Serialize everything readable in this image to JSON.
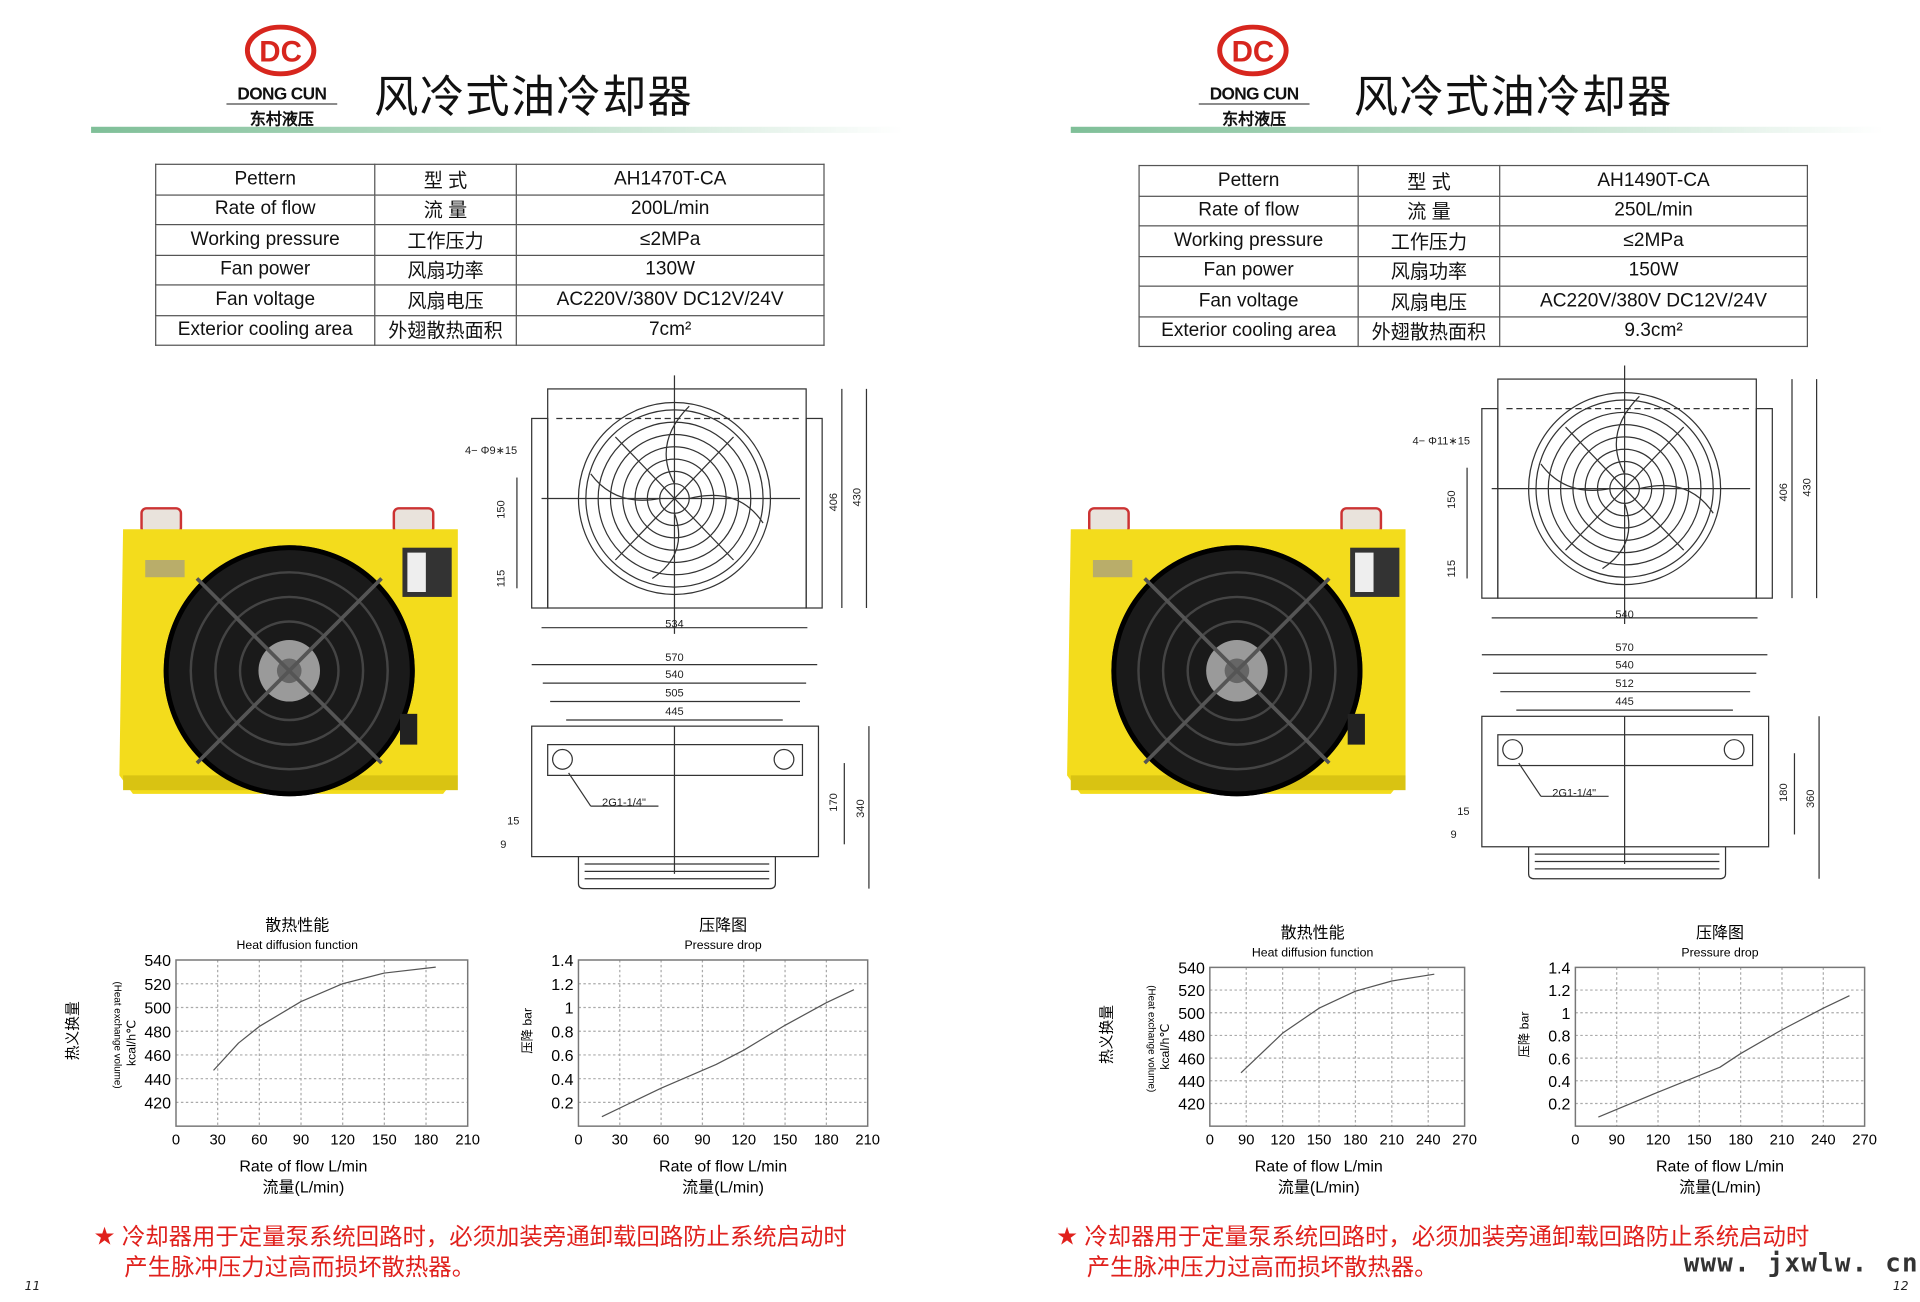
{
  "brand": {
    "logo_letters": "DC",
    "name_en": "DONG CUN",
    "name_cn": "东村液压",
    "color": "#d7261e"
  },
  "pages": [
    {
      "title": "风冷式油冷却器",
      "page_number": "11",
      "specs": [
        {
          "en": "Pettern",
          "cn": "型  式",
          "value": "AH1470T-CA"
        },
        {
          "en": "Rate of flow",
          "cn": "流  量",
          "value": "200L/min"
        },
        {
          "en": "Working pressure",
          "cn": "工作压力",
          "value": "≤2MPa"
        },
        {
          "en": "Fan power",
          "cn": "风扇功率",
          "value": "130W"
        },
        {
          "en": "Fan voltage",
          "cn": "风扇电压",
          "value": "AC220V/380V  DC12V/24V"
        },
        {
          "en": "Exterior cooling area",
          "cn": "外翅散热面积",
          "value": "7cm²"
        }
      ],
      "drawing": {
        "holes": "4− Φ9∗15",
        "h150": "150",
        "h115": "115",
        "h406": "406",
        "h430": "430",
        "w_top": "534",
        "w570": "570",
        "w540": "540",
        "w_mid": "505",
        "w445": "445",
        "port": "2G1-1/4\"",
        "d15": "15",
        "d9": "9",
        "h_inner": "170",
        "h_outer": "340"
      },
      "note_line1": "冷却器用于定量泵系统回路时，必须加装旁通卸载回路防止系统启动时",
      "note_line2": "产生脉冲压力过高而损坏散热器。"
    },
    {
      "title": "风冷式油冷却器",
      "page_number": "12",
      "specs": [
        {
          "en": "Pettern",
          "cn": "型  式",
          "value": "AH1490T-CA"
        },
        {
          "en": "Rate of flow",
          "cn": "流  量",
          "value": "250L/min"
        },
        {
          "en": "Working pressure",
          "cn": "工作压力",
          "value": "≤2MPa"
        },
        {
          "en": "Fan power",
          "cn": "风扇功率",
          "value": "150W"
        },
        {
          "en": "Fan voltage",
          "cn": "风扇电压",
          "value": "AC220V/380V  DC12V/24V"
        },
        {
          "en": "Exterior cooling area",
          "cn": "外翅散热面积",
          "value": "9.3cm²"
        }
      ],
      "drawing": {
        "holes": "4− Φ11∗15",
        "h150": "150",
        "h115": "115",
        "h406": "406",
        "h430": "430",
        "w_top": "540",
        "w570": "570",
        "w540": "540",
        "w_mid": "512",
        "w445": "445",
        "port": "2G1-1/4\"",
        "d15": "15",
        "d9": "9",
        "h_inner": "180",
        "h_outer": "360"
      },
      "note_line1": "冷却器用于定量泵系统回路时，必须加装旁通卸载回路防止系统启动时",
      "note_line2": "产生脉冲压力过高而损坏散热器。",
      "website": "www. jxwlw. cn"
    }
  ],
  "chart_data": [
    {
      "type": "line",
      "title": "散热性能",
      "subtitle": "Heat diffusion function",
      "xlabel": "Rate of flow  L/min",
      "xlabel_cn": "流量(L/min)",
      "ylabel": "kcal/h℃",
      "ylabel_cn": "热义换量",
      "ylabel_en": "(Heat exchange volume)",
      "x_ticks": [
        0,
        30,
        60,
        90,
        120,
        150,
        180,
        210
      ],
      "y_ticks": [
        420,
        440,
        460,
        480,
        500,
        520,
        540
      ],
      "xlim": [
        0,
        210
      ],
      "ylim": [
        400,
        540
      ],
      "grid": true,
      "x": [
        27,
        45,
        60,
        90,
        120,
        150,
        187
      ],
      "y": [
        447,
        470,
        484,
        505,
        520,
        529,
        534
      ]
    },
    {
      "type": "line",
      "title": "压降图",
      "subtitle": "Pressure drop",
      "xlabel": "Rate of flow  L/min",
      "xlabel_cn": "流量(L/min)",
      "ylabel": "压降 bar",
      "x_ticks": [
        0,
        30,
        60,
        90,
        120,
        150,
        180,
        210
      ],
      "y_ticks": [
        0.2,
        0.4,
        0.6,
        0.8,
        1.0,
        1.2,
        1.4
      ],
      "xlim": [
        0,
        210
      ],
      "ylim": [
        0,
        1.4
      ],
      "grid": true,
      "x": [
        17,
        60,
        100,
        120,
        150,
        180,
        200
      ],
      "y": [
        0.08,
        0.32,
        0.52,
        0.64,
        0.85,
        1.04,
        1.15
      ]
    },
    {
      "type": "line",
      "title": "散热性能",
      "subtitle": "Heat diffusion function",
      "xlabel": "Rate of flow  L/min",
      "xlabel_cn": "流量(L/min)",
      "ylabel": "kcal/h℃",
      "ylabel_cn": "热义换量",
      "ylabel_en": "(Heat exchange volume)",
      "x_ticks": [
        0,
        90,
        120,
        150,
        180,
        210,
        240,
        270
      ],
      "y_ticks": [
        420,
        440,
        460,
        480,
        500,
        520,
        540
      ],
      "xlim": [
        0,
        270
      ],
      "ylim": [
        400,
        540
      ],
      "grid": true,
      "x": [
        77,
        120,
        150,
        180,
        210,
        245
      ],
      "y": [
        447,
        482,
        504,
        519,
        528,
        534
      ]
    },
    {
      "type": "line",
      "title": "压降图",
      "subtitle": "Pressure drop",
      "xlabel": "Rate of flow  L/min",
      "xlabel_cn": "流量(L/min)",
      "ylabel": "压降 bar",
      "x_ticks": [
        0,
        90,
        120,
        150,
        180,
        210,
        240,
        270
      ],
      "y_ticks": [
        0.2,
        0.4,
        0.6,
        0.8,
        1.0,
        1.2,
        1.4
      ],
      "xlim": [
        0,
        270
      ],
      "ylim": [
        0,
        1.4
      ],
      "grid": true,
      "x": [
        50,
        120,
        165,
        180,
        210,
        240,
        259
      ],
      "y": [
        0.08,
        0.3,
        0.52,
        0.64,
        0.85,
        1.04,
        1.15
      ]
    }
  ]
}
